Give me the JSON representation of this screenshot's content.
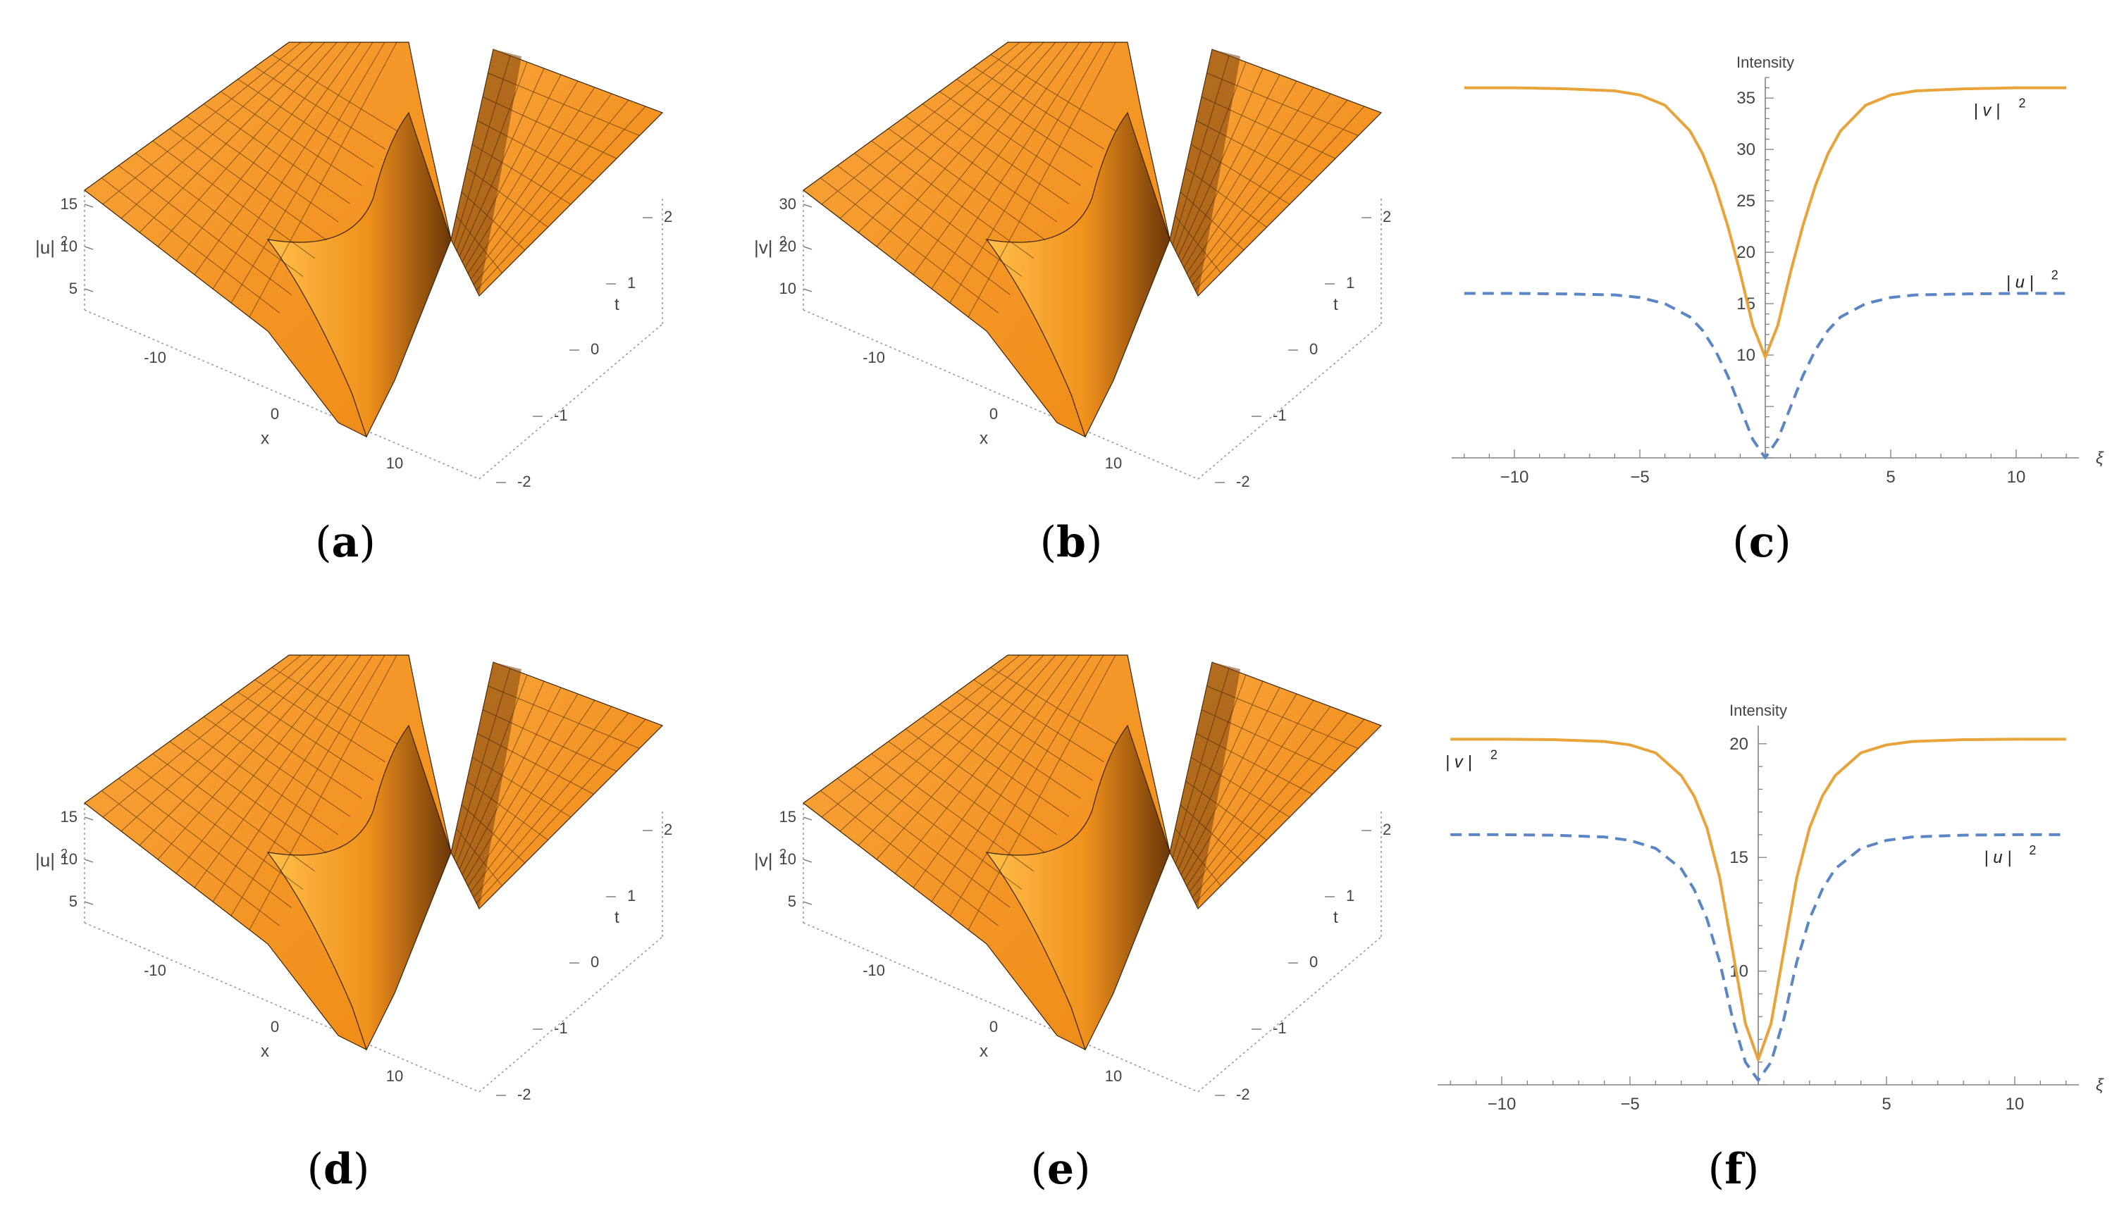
{
  "captions": {
    "a": "a",
    "b": "b",
    "c": "c",
    "d": "d",
    "e": "e",
    "f": "f"
  },
  "colors": {
    "surface_light": "#ffb43c",
    "surface_mid": "#f7941d",
    "surface_dark": "#a85a10",
    "orange_curve": "#e8a33a",
    "blue_curve": "#5a86c5",
    "axis": "#808080",
    "text": "#444444"
  },
  "surfaces": [
    {
      "id": "a",
      "zlabel": "|u|",
      "zexp": "2",
      "xlabel": "x",
      "tlabel": "t",
      "xticks": [
        "-10",
        "0",
        "10"
      ],
      "tticks": [
        "2",
        "1",
        "0",
        "-1",
        "-2"
      ],
      "zticks": [
        "15",
        "10",
        "5"
      ]
    },
    {
      "id": "b",
      "zlabel": "|v|",
      "zexp": "2",
      "xlabel": "x",
      "tlabel": "t",
      "xticks": [
        "-10",
        "0",
        "10"
      ],
      "tticks": [
        "2",
        "1",
        "0",
        "-1",
        "-2"
      ],
      "zticks": [
        "30",
        "20",
        "10"
      ]
    },
    {
      "id": "d",
      "zlabel": "|u|",
      "zexp": "2",
      "xlabel": "x",
      "tlabel": "t",
      "xticks": [
        "-10",
        "0",
        "10"
      ],
      "tticks": [
        "2",
        "1",
        "0",
        "-1",
        "-2"
      ],
      "zticks": [
        "15",
        "10",
        "5"
      ]
    },
    {
      "id": "e",
      "zlabel": "|v|",
      "zexp": "2",
      "xlabel": "x",
      "tlabel": "t",
      "xticks": [
        "-10",
        "0",
        "10"
      ],
      "tticks": [
        "2",
        "1",
        "0",
        "-1",
        "-2"
      ],
      "zticks": [
        "15",
        "10",
        "5"
      ]
    }
  ],
  "chart_data": [
    {
      "id": "c",
      "type": "line",
      "title": "Intensity",
      "xlabel": "ξ",
      "xlim": [
        -12.5,
        12.5
      ],
      "ylim": [
        0,
        37
      ],
      "xticks": [
        -10,
        -5,
        5,
        10
      ],
      "yticks": [
        10,
        15,
        20,
        25,
        30,
        35
      ],
      "series": [
        {
          "name": "| v |",
          "name_exp": "2",
          "style": "solid",
          "x": [
            -12,
            -10,
            -8,
            -6,
            -5,
            -4,
            -3,
            -2.5,
            -2,
            -1.5,
            -1,
            -0.5,
            0,
            0.5,
            1,
            1.5,
            2,
            2.5,
            3,
            4,
            5,
            6,
            8,
            10,
            12
          ],
          "y": [
            36,
            36,
            35.9,
            35.7,
            35.3,
            34.3,
            31.8,
            29.6,
            26.5,
            22.6,
            18.0,
            12.9,
            9.8,
            12.9,
            18.0,
            22.6,
            26.5,
            29.6,
            31.8,
            34.3,
            35.3,
            35.7,
            35.9,
            36,
            36
          ]
        },
        {
          "name": "| u |",
          "name_exp": "2",
          "style": "dashed",
          "x": [
            -12,
            -10,
            -8,
            -6,
            -5,
            -4,
            -3,
            -2.5,
            -2,
            -1.5,
            -1,
            -0.5,
            0,
            0.5,
            1,
            1.5,
            2,
            2.5,
            3,
            4,
            5,
            6,
            8,
            10,
            12
          ],
          "y": [
            16,
            16,
            15.95,
            15.85,
            15.6,
            15.0,
            13.7,
            12.4,
            10.5,
            8.0,
            4.9,
            1.8,
            0,
            1.8,
            4.9,
            8.0,
            10.5,
            12.4,
            13.7,
            15.0,
            15.6,
            15.85,
            15.95,
            16,
            16
          ]
        }
      ]
    },
    {
      "id": "f",
      "type": "line",
      "title": "Intensity",
      "xlabel": "ξ",
      "xlim": [
        -12.5,
        12.5
      ],
      "ylim": [
        5,
        20.8
      ],
      "xticks": [
        -10,
        -5,
        5,
        10
      ],
      "yticks": [
        10,
        15,
        20
      ],
      "series": [
        {
          "name": "| v |",
          "name_exp": "2",
          "style": "solid",
          "x": [
            -12,
            -10,
            -8,
            -6,
            -5,
            -4,
            -3,
            -2.5,
            -2,
            -1.5,
            -1,
            -0.5,
            0,
            0.5,
            1,
            1.5,
            2,
            2.5,
            3,
            4,
            5,
            6,
            8,
            10,
            12
          ],
          "y": [
            20.2,
            20.2,
            20.18,
            20.1,
            19.95,
            19.6,
            18.6,
            17.7,
            16.3,
            14.1,
            10.9,
            7.7,
            6.1,
            7.7,
            10.9,
            14.1,
            16.3,
            17.7,
            18.6,
            19.6,
            19.95,
            20.1,
            20.18,
            20.2,
            20.2
          ]
        },
        {
          "name": "| u |",
          "name_exp": "2",
          "style": "dashed",
          "x": [
            -12,
            -10,
            -8,
            -6,
            -5,
            -4,
            -3,
            -2.5,
            -2,
            -1.5,
            -1,
            -0.5,
            0,
            0.5,
            1,
            1.5,
            2,
            2.5,
            3,
            4,
            5,
            6,
            8,
            10,
            12
          ],
          "y": [
            16,
            16,
            15.98,
            15.9,
            15.75,
            15.4,
            14.5,
            13.6,
            12.3,
            10.4,
            7.9,
            6.0,
            5.2,
            6.0,
            7.9,
            10.4,
            12.3,
            13.6,
            14.5,
            15.4,
            15.75,
            15.9,
            15.98,
            16,
            16
          ]
        }
      ]
    }
  ]
}
